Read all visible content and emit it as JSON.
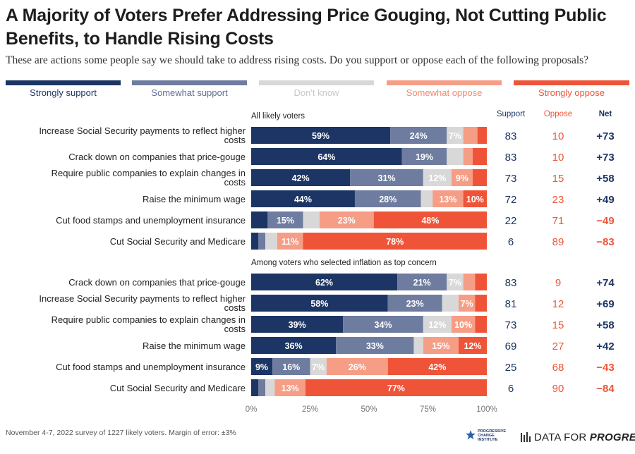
{
  "header": {
    "title": "A Majority of Voters Prefer Addressing Price Gouging, Not Cutting Public Benefits, to Handle Rising Costs",
    "subtitle": "These are actions some people say we should take to address rising costs. Do you support or oppose each of the following proposals?"
  },
  "legend": [
    {
      "label": "Strongly support",
      "color": "#1c3564",
      "text_color": "#1c3564"
    },
    {
      "label": "Somewhat support",
      "color": "#6e7c9f",
      "text_color": "#5f6e93"
    },
    {
      "label": "Don't know",
      "color": "#d8d8d8",
      "text_color": "#c8c8c8"
    },
    {
      "label": "Somewhat oppose",
      "color": "#f69d86",
      "text_color": "#f38a70"
    },
    {
      "label": "Strongly oppose",
      "color": "#ef5438",
      "text_color": "#ef5438"
    }
  ],
  "columns": {
    "support": "Support",
    "oppose": "Oppose",
    "net": "Net"
  },
  "chart_data": {
    "type": "bar",
    "orientation": "horizontal",
    "stacked": true,
    "xlim": [
      0,
      100
    ],
    "x_ticks": [
      "0%",
      "25%",
      "50%",
      "75%",
      "100%"
    ],
    "series_names": [
      "Strongly support",
      "Somewhat support",
      "Don't know",
      "Somewhat oppose",
      "Strongly oppose"
    ],
    "groups": [
      {
        "title": "All likely voters",
        "rows": [
          {
            "label": "Increase Social Security payments to reflect higher costs",
            "values": [
              59,
              24,
              7,
              6,
              4
            ],
            "labels": [
              "59%",
              "24%",
              "7%",
              "",
              ""
            ],
            "support": "83",
            "oppose": "10",
            "net": "+73"
          },
          {
            "label": "Crack down on companies that price-gouge",
            "values": [
              64,
              19,
              7,
              4,
              6
            ],
            "labels": [
              "64%",
              "19%",
              "",
              "",
              ""
            ],
            "support": "83",
            "oppose": "10",
            "net": "+73"
          },
          {
            "label": "Require public companies to explain changes in costs",
            "values": [
              42,
              31,
              12,
              9,
              6
            ],
            "labels": [
              "42%",
              "31%",
              "12%",
              "9%",
              ""
            ],
            "support": "73",
            "oppose": "15",
            "net": "+58"
          },
          {
            "label": "Raise the minimum wage",
            "values": [
              44,
              28,
              5,
              13,
              10
            ],
            "labels": [
              "44%",
              "28%",
              "",
              "13%",
              "10%"
            ],
            "support": "72",
            "oppose": "23",
            "net": "+49"
          },
          {
            "label": "Cut food stamps and unemployment insurance",
            "values": [
              7,
              15,
              7,
              23,
              48
            ],
            "labels": [
              "",
              "15%",
              "",
              "23%",
              "48%"
            ],
            "support": "22",
            "oppose": "71",
            "net": "−49"
          },
          {
            "label": "Cut Social Security and Medicare",
            "values": [
              3,
              3,
              5,
              11,
              78
            ],
            "labels": [
              "",
              "",
              "",
              "11%",
              "78%"
            ],
            "support": "6",
            "oppose": "89",
            "net": "−83"
          }
        ]
      },
      {
        "title": "Among voters who selected inflation as top concern",
        "rows": [
          {
            "label": "Crack down on companies that price-gouge",
            "values": [
              62,
              21,
              7,
              5,
              5
            ],
            "labels": [
              "62%",
              "21%",
              "7%",
              "",
              ""
            ],
            "support": "83",
            "oppose": "9",
            "net": "+74"
          },
          {
            "label": "Increase Social Security payments to reflect higher costs",
            "values": [
              58,
              23,
              7,
              7,
              5
            ],
            "labels": [
              "58%",
              "23%",
              "",
              "7%",
              ""
            ],
            "support": "81",
            "oppose": "12",
            "net": "+69"
          },
          {
            "label": "Require public companies to explain changes in costs",
            "values": [
              39,
              34,
              12,
              10,
              5
            ],
            "labels": [
              "39%",
              "34%",
              "12%",
              "10%",
              ""
            ],
            "support": "73",
            "oppose": "15",
            "net": "+58"
          },
          {
            "label": "Raise the minimum wage",
            "values": [
              36,
              33,
              4,
              15,
              12
            ],
            "labels": [
              "36%",
              "33%",
              "",
              "15%",
              "12%"
            ],
            "support": "69",
            "oppose": "27",
            "net": "+42"
          },
          {
            "label": "Cut food stamps and unemployment insurance",
            "values": [
              9,
              16,
              7,
              26,
              42
            ],
            "labels": [
              "9%",
              "16%",
              "7%",
              "26%",
              "42%"
            ],
            "support": "25",
            "oppose": "68",
            "net": "−43"
          },
          {
            "label": "Cut Social Security and Medicare",
            "values": [
              3,
              3,
              4,
              13,
              77
            ],
            "labels": [
              "",
              "",
              "",
              "13%",
              "77%"
            ],
            "support": "6",
            "oppose": "90",
            "net": "−84"
          }
        ]
      }
    ]
  },
  "colors": {
    "support_text": "#1c3564",
    "oppose_text": "#ef5438",
    "net_positive": "#1c3564",
    "net_negative": "#ef5438",
    "label_dark_bg": "#ffffff",
    "label_light_bg": "#ffffff"
  },
  "footer": {
    "note": "November 4-7, 2022 survey of 1227 likely voters. Margin of error: ±3%",
    "logo1": "PROGRESSIVE\nCHANGE\nINSTITUTE",
    "logo2_part1": "DATA FOR ",
    "logo2_part2": "PROGRESS"
  }
}
